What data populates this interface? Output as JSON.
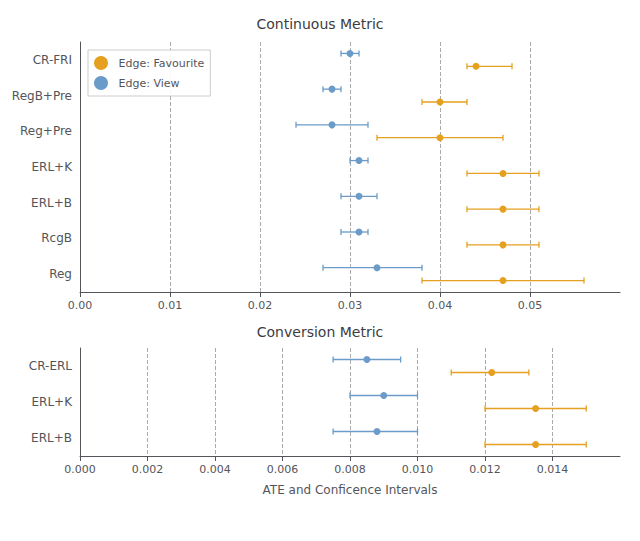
{
  "chart_data": [
    {
      "type": "scatter",
      "orientation": "horizontal",
      "title": "Continuous Metric",
      "categories": [
        "CR-FRI",
        "RegB+Pre",
        "Reg+Pre",
        "ERL+K",
        "ERL+B",
        "RcgB",
        "Reg"
      ],
      "series": [
        {
          "name": "Edge: Favourite",
          "color": "#E5A020",
          "values": [
            0.044,
            0.04,
            0.04,
            0.047,
            0.047,
            0.047,
            0.047
          ],
          "error_lo": [
            0.001,
            0.002,
            0.007,
            0.004,
            0.004,
            0.004,
            0.009
          ],
          "error_hi": [
            0.004,
            0.003,
            0.007,
            0.004,
            0.004,
            0.004,
            0.009
          ]
        },
        {
          "name": "Edge: View",
          "color": "#6B9BC8",
          "values": [
            0.03,
            0.028,
            0.028,
            0.031,
            0.031,
            0.031,
            0.033
          ],
          "error_lo": [
            0.001,
            0.001,
            0.004,
            0.001,
            0.002,
            0.002,
            0.006
          ],
          "error_hi": [
            0.001,
            0.001,
            0.004,
            0.001,
            0.002,
            0.001,
            0.005
          ]
        }
      ],
      "xlim": [
        0.0,
        0.06
      ],
      "xticks": [
        {
          "value": 0.0,
          "label": "0.00"
        },
        0.01,
        0.02,
        0.03,
        0.04,
        0.05
      ],
      "grid": true,
      "legend": "upper left"
    },
    {
      "type": "scatter",
      "orientation": "horizontal",
      "title": "Conversion Metric",
      "xlabel": "ATE and Conficence Intervals",
      "categories": [
        "CR-ERL",
        "ERL+K",
        "ERL+B"
      ],
      "series": [
        {
          "name": "Edge: Favourite",
          "color": "#E5A020",
          "values": [
            0.0122,
            0.0135,
            0.0135
          ],
          "error_lo": [
            0.0012,
            0.0015,
            0.0015
          ],
          "error_hi": [
            0.0011,
            0.0015,
            0.0015
          ]
        },
        {
          "name": "Edge: View",
          "color": "#6B9BC8",
          "values": [
            0.0085,
            0.009,
            0.0088
          ],
          "error_lo": [
            0.001,
            0.001,
            0.0013
          ],
          "error_hi": [
            0.001,
            0.001,
            0.0012
          ]
        }
      ],
      "xlim": [
        0.0,
        0.016
      ],
      "xticks": [
        {
          "value": 0.0,
          "label": "0.000"
        },
        0.002,
        0.004,
        0.006,
        0.008,
        {
          "value": 0.01,
          "label": "0.010"
        },
        0.012,
        0.014
      ],
      "grid": true
    }
  ]
}
